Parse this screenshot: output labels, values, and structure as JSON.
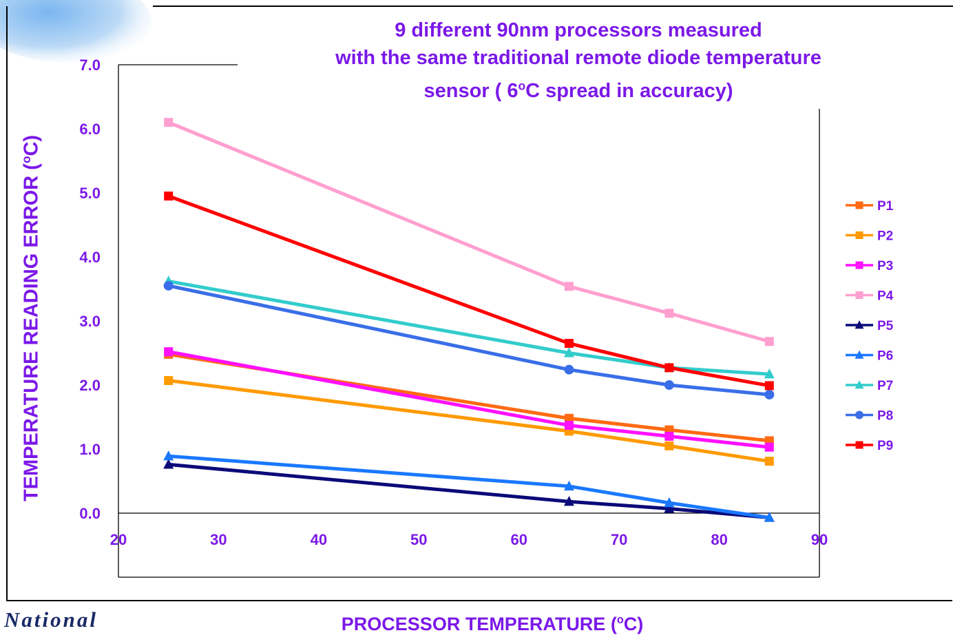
{
  "title": {
    "line1": "9 different 90nm processors measured",
    "line2": "with the same traditional remote diode temperature",
    "line3_pre": "sensor ( 6",
    "line3_sup": "o",
    "line3_post": "C spread in accuracy)"
  },
  "ylabel": {
    "pre": "TEMPERATURE READING ERROR (",
    "sup": "o",
    "post": "C)"
  },
  "xlabel": {
    "pre": "PROCESSOR TEMPERATURE (",
    "sup": "o",
    "post": "C)"
  },
  "footer": {
    "logo_text": "National"
  },
  "chart_data": {
    "type": "line",
    "title": "9 different 90nm processors measured with the same traditional remote diode temperature sensor ( 6oC spread in accuracy)",
    "xlabel": "PROCESSOR TEMPERATURE (oC)",
    "ylabel": "TEMPERATURE READING ERROR (oC)",
    "xlim": [
      20,
      90
    ],
    "ylim": [
      0.0,
      7.0
    ],
    "x_ticks": [
      "20",
      "30",
      "40",
      "50",
      "60",
      "70",
      "80",
      "90"
    ],
    "y_ticks": [
      "0.0",
      "1.0",
      "2.0",
      "3.0",
      "4.0",
      "5.0",
      "6.0",
      "7.0"
    ],
    "grid": false,
    "legend_position": "right",
    "x": [
      25,
      65,
      75,
      85
    ],
    "series": [
      {
        "name": "P1",
        "color": "#ff6a13",
        "marker": "square",
        "values": [
          2.48,
          1.48,
          1.3,
          1.13
        ]
      },
      {
        "name": "P2",
        "color": "#ff9a00",
        "marker": "square",
        "values": [
          2.07,
          1.28,
          1.05,
          0.81
        ]
      },
      {
        "name": "P3",
        "color": "#ff10ff",
        "marker": "square",
        "values": [
          2.52,
          1.37,
          1.2,
          1.03
        ]
      },
      {
        "name": "P4",
        "color": "#ff9fcf",
        "marker": "square",
        "values": [
          6.1,
          3.54,
          3.12,
          2.68
        ]
      },
      {
        "name": "P5",
        "color": "#0a0a78",
        "marker": "triangle",
        "values": [
          0.76,
          0.18,
          0.07,
          -0.07
        ]
      },
      {
        "name": "P6",
        "color": "#1a78ff",
        "marker": "triangle",
        "values": [
          0.89,
          0.42,
          0.16,
          -0.07
        ]
      },
      {
        "name": "P7",
        "color": "#33cccc",
        "marker": "triangle",
        "values": [
          3.62,
          2.5,
          2.27,
          2.17
        ]
      },
      {
        "name": "P8",
        "color": "#3a6ee8",
        "marker": "circle",
        "values": [
          3.55,
          2.24,
          2.0,
          1.85
        ]
      },
      {
        "name": "P9",
        "color": "#ff0000",
        "marker": "square",
        "values": [
          4.95,
          2.65,
          2.27,
          1.99
        ]
      }
    ]
  }
}
